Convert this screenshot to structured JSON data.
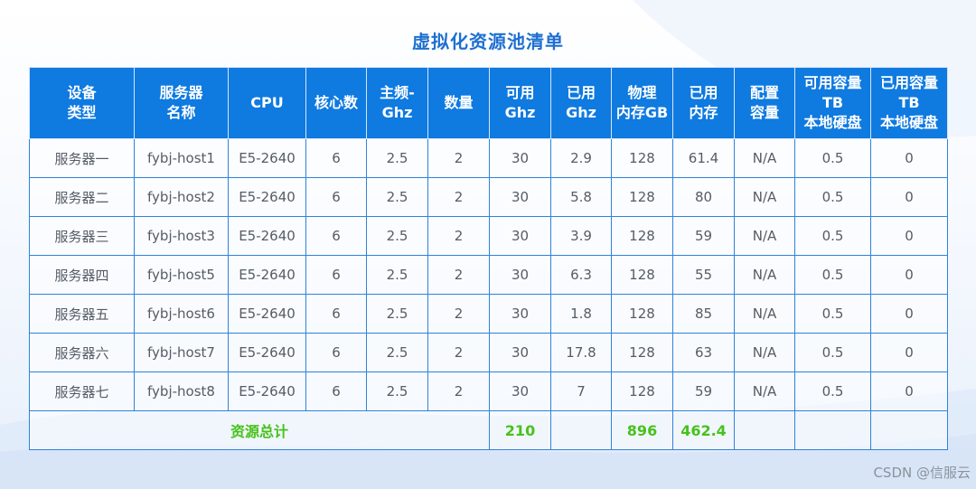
{
  "title": "虚拟化资源池清单",
  "headers": [
    "设备\n类型",
    "服务器\n名称",
    "CPU",
    "核心数",
    "主频-\nGhz",
    "数量",
    "可用\nGhz",
    "已用\nGhz",
    "物理\n内存GB",
    "已用\n内存",
    "配置\n容量",
    "可用容量\nTB\n本地硬盘",
    "已用容量\nTB\n本地硬盘"
  ],
  "rows": [
    [
      "服务器一",
      "fybj-host1",
      "E5-2640",
      "6",
      "2.5",
      "2",
      "30",
      "2.9",
      "128",
      "61.4",
      "N/A",
      "0.5",
      "0"
    ],
    [
      "服务器二",
      "fybj-host2",
      "E5-2640",
      "6",
      "2.5",
      "2",
      "30",
      "5.8",
      "128",
      "80",
      "N/A",
      "0.5",
      "0"
    ],
    [
      "服务器三",
      "fybj-host3",
      "E5-2640",
      "6",
      "2.5",
      "2",
      "30",
      "3.9",
      "128",
      "59",
      "N/A",
      "0.5",
      "0"
    ],
    [
      "服务器四",
      "fybj-host5",
      "E5-2640",
      "6",
      "2.5",
      "2",
      "30",
      "6.3",
      "128",
      "55",
      "N/A",
      "0.5",
      "0"
    ],
    [
      "服务器五",
      "fybj-host6",
      "E5-2640",
      "6",
      "2.5",
      "2",
      "30",
      "1.8",
      "128",
      "85",
      "N/A",
      "0.5",
      "0"
    ],
    [
      "服务器六",
      "fybj-host7",
      "E5-2640",
      "6",
      "2.5",
      "2",
      "30",
      "17.8",
      "128",
      "63",
      "N/A",
      "0.5",
      "0"
    ],
    [
      "服务器七",
      "fybj-host8",
      "E5-2640",
      "6",
      "2.5",
      "2",
      "30",
      "7",
      "128",
      "59",
      "N/A",
      "0.5",
      "0"
    ]
  ],
  "total": {
    "label": "资源总计",
    "available_ghz": "210",
    "physical_memory": "896",
    "used_memory": "462.4"
  },
  "watermark": "CSDN @信服云",
  "colors": {
    "title": "#1e6fd0",
    "header_bg": "#0f7ae0",
    "header_text": "#ffffff",
    "cell_text": "#555c66",
    "total_text": "#47c21b",
    "border": "#2f83d8"
  }
}
